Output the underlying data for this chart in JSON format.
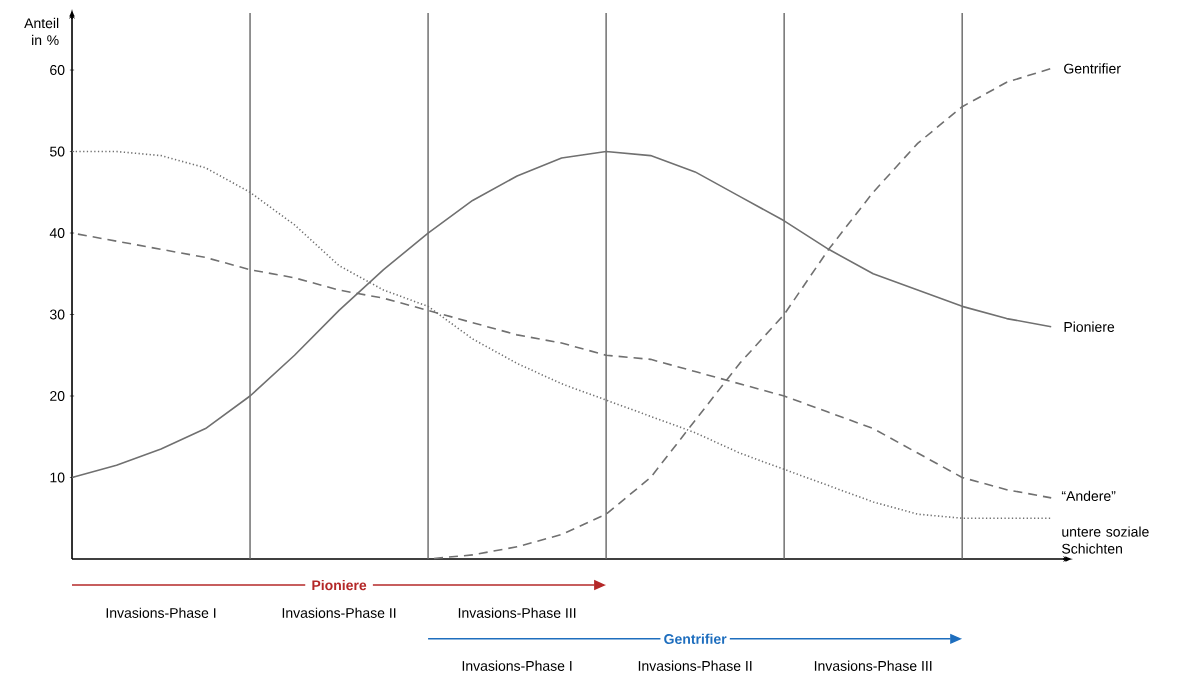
{
  "chart_data": {
    "type": "line",
    "ylabel": "Anteil in %",
    "categories": [
      null,
      null,
      null,
      null,
      null,
      null,
      null,
      null,
      null,
      null,
      null,
      null,
      null,
      null,
      null,
      null,
      null,
      null,
      null,
      null,
      null,
      null,
      null
    ],
    "ylim": [
      0,
      67
    ],
    "yticks": [
      10,
      20,
      30,
      40,
      50,
      60
    ],
    "tick_labels": "y",
    "marker": "none",
    "grid": "x",
    "series": [
      {
        "name": "Gentrifier",
        "color": "#707070",
        "line_style": "dashed",
        "values": [
          null,
          null,
          null,
          null,
          null,
          null,
          null,
          null,
          0,
          0.5,
          1.5,
          3,
          5.5,
          10,
          17,
          24,
          30,
          38,
          45,
          51,
          55.5,
          58.5,
          60.2
        ]
      },
      {
        "name": "Pioniere",
        "color": "#707070",
        "line_style": "solid",
        "values": [
          10,
          11.5,
          13.5,
          16,
          20,
          25,
          30.5,
          35.5,
          40,
          44,
          47,
          49.2,
          50,
          49.5,
          47.5,
          44.5,
          41.5,
          38,
          35,
          33,
          31,
          29.5,
          28.5
        ]
      },
      {
        "name": "“Andere”",
        "color": "#707070",
        "line_style": "dashed",
        "values": [
          40,
          39,
          38,
          37,
          35.5,
          34.5,
          33,
          32,
          30.5,
          29,
          27.5,
          26.5,
          25,
          24.5,
          23,
          21.5,
          20,
          18,
          16,
          13,
          10,
          8.5,
          7.5
        ]
      },
      {
        "name": "untere soziale Schichten",
        "color": "#707070",
        "line_style": "dotted",
        "values": [
          50,
          50,
          49.5,
          48,
          45,
          41,
          36,
          33,
          31,
          27,
          24,
          21.5,
          19.5,
          17.5,
          15.5,
          13,
          11,
          9,
          7,
          5.5,
          5,
          5,
          5
        ]
      }
    ],
    "annotations": [
      "Pioniere",
      "Invasions-Phase I",
      "Invasions-Phase II",
      "Invasions-Phase III",
      "Gentrifier",
      "Invasions-Phase I",
      "Invasions-Phase II",
      "Invasions-Phase III"
    ]
  }
}
